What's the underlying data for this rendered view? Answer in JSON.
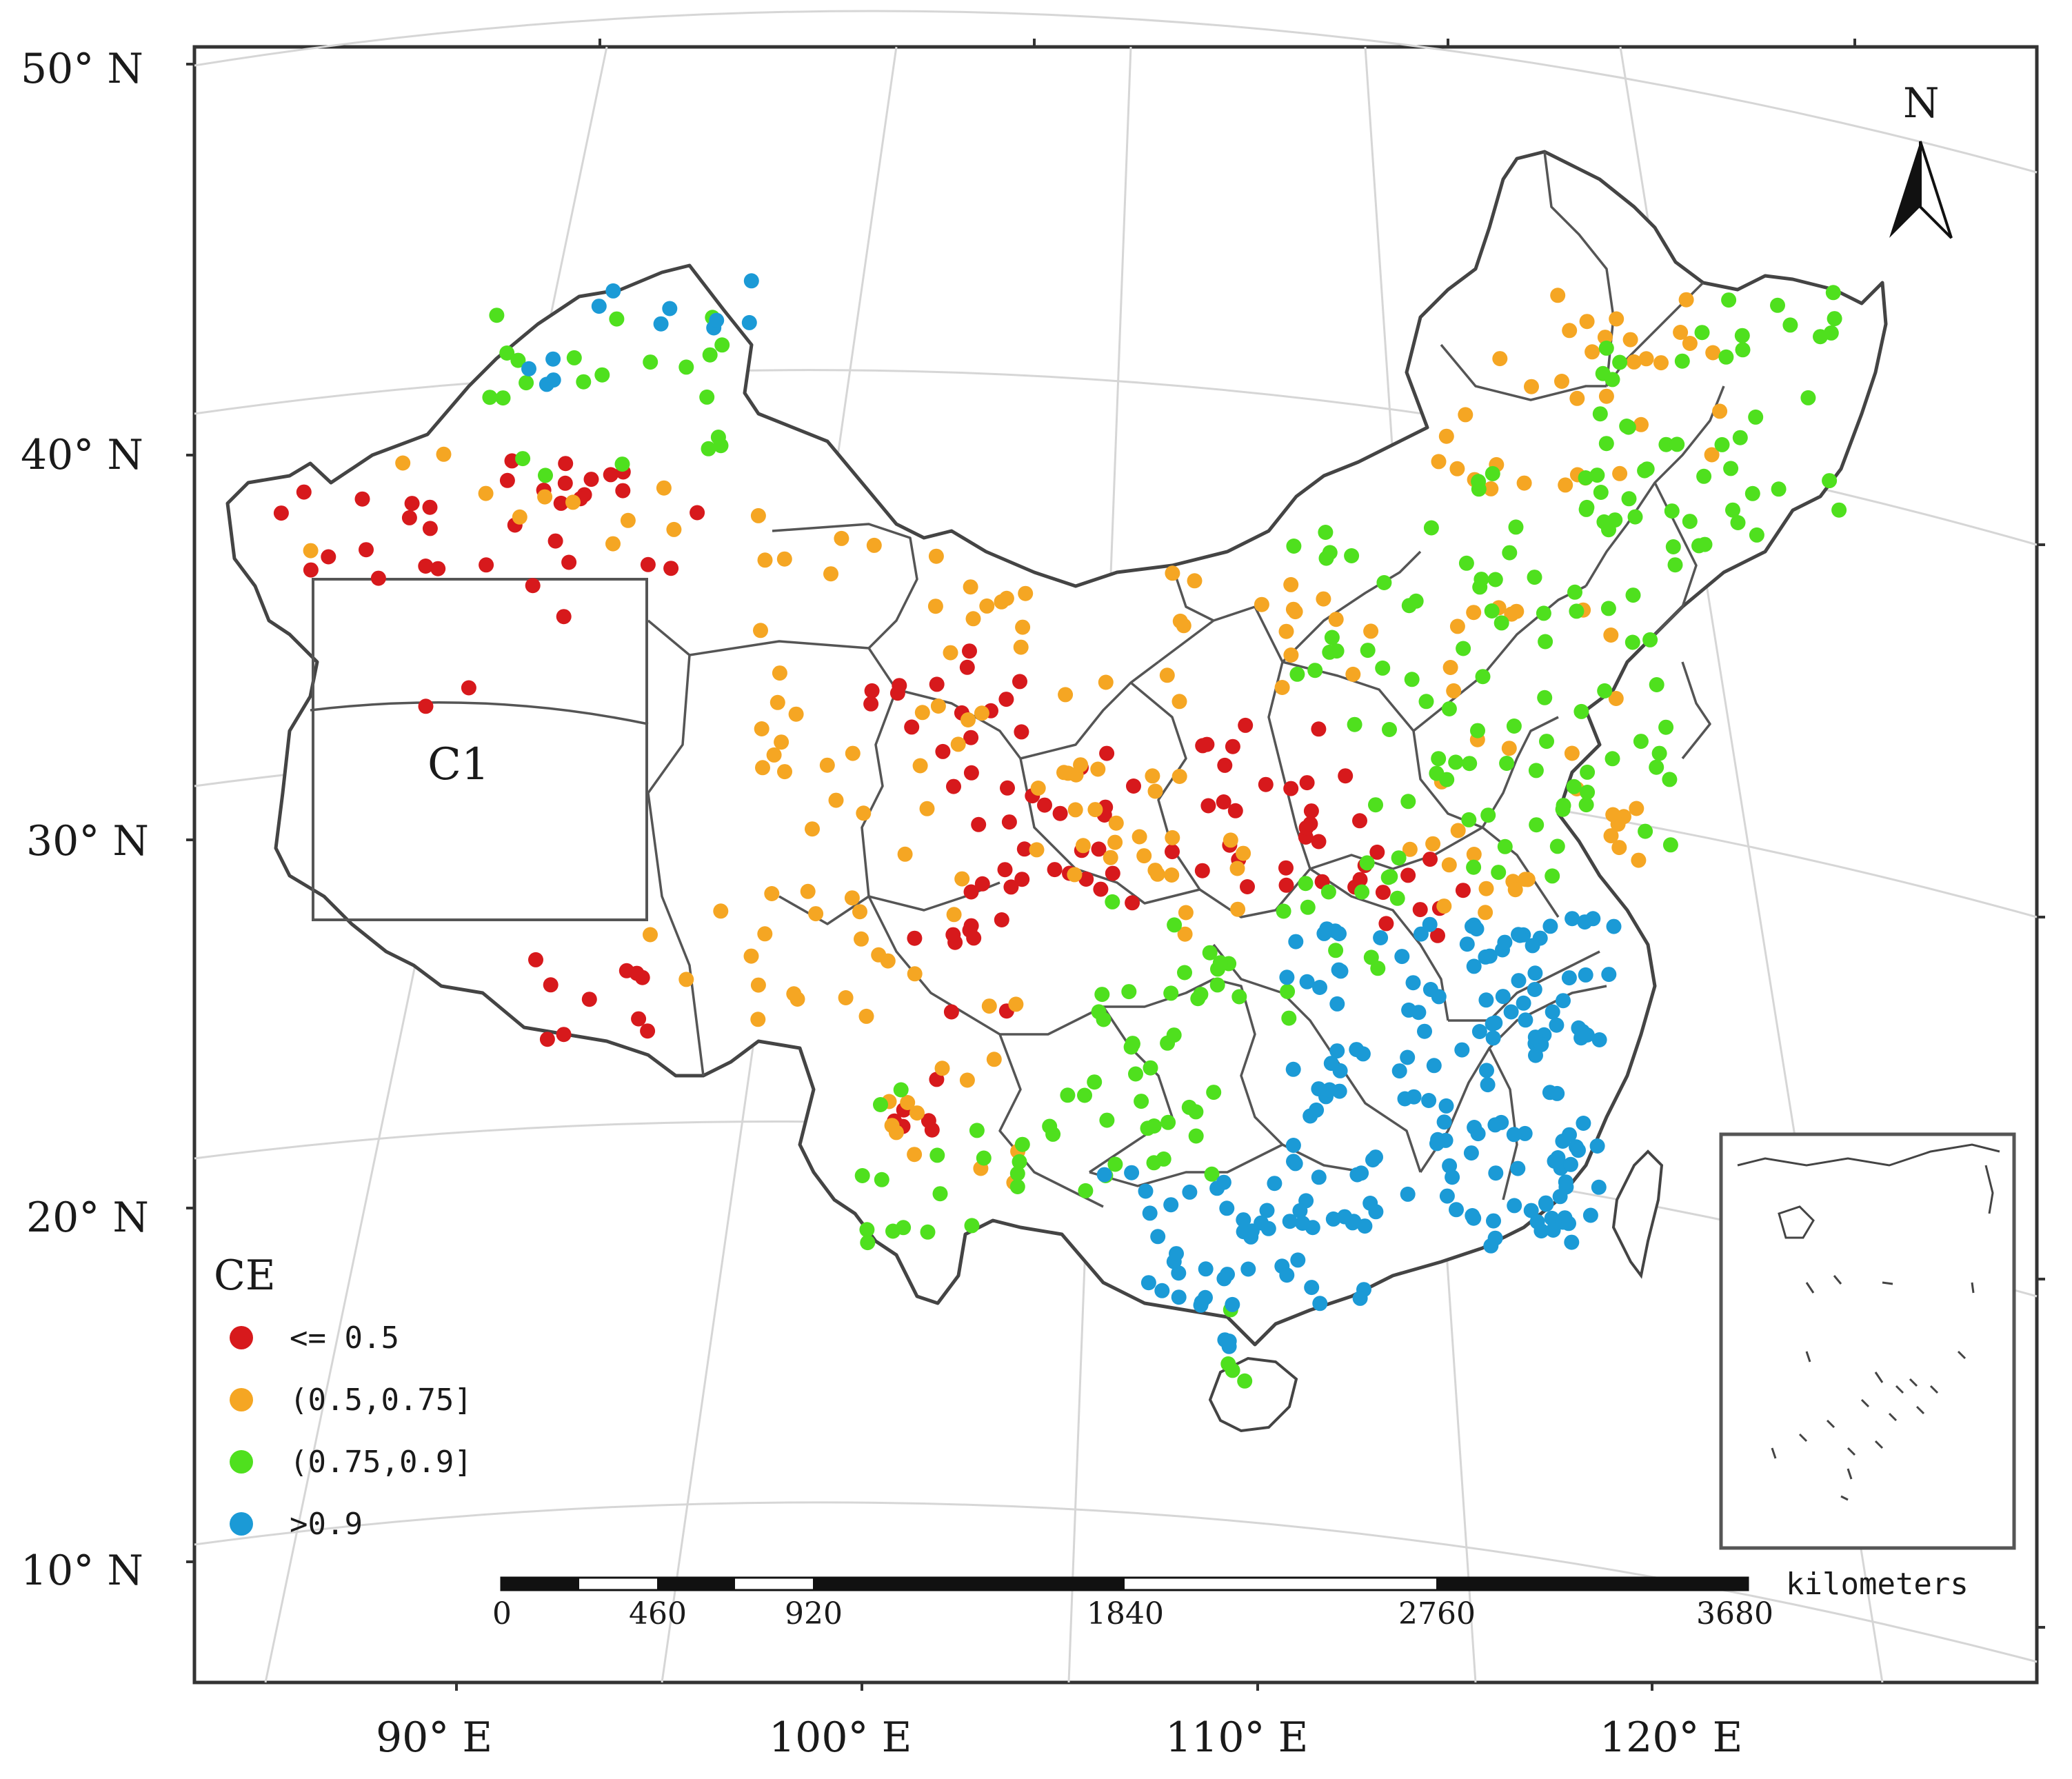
{
  "map": {
    "lat_labels": [
      "50° N",
      "40° N",
      "30° N",
      "20° N",
      "10° N"
    ],
    "lon_labels": [
      "90° E",
      "100° E",
      "110° E",
      "120° E"
    ],
    "north_label": "N",
    "region_label": "C1",
    "legend": {
      "title": "CE",
      "items": [
        {
          "label": "<= 0.5",
          "color": "#d7191c"
        },
        {
          "label": "(0.5,0.75]",
          "color": "#f5a623"
        },
        {
          "label": "(0.75,0.9]",
          "color": "#4fe01e"
        },
        {
          "label": ">0.9",
          "color": "#1b9ad6"
        }
      ]
    },
    "scale_bar": {
      "ticks": [
        "0",
        "460",
        "920",
        "1840",
        "2760",
        "3680"
      ],
      "unit": "kilometers"
    }
  }
}
